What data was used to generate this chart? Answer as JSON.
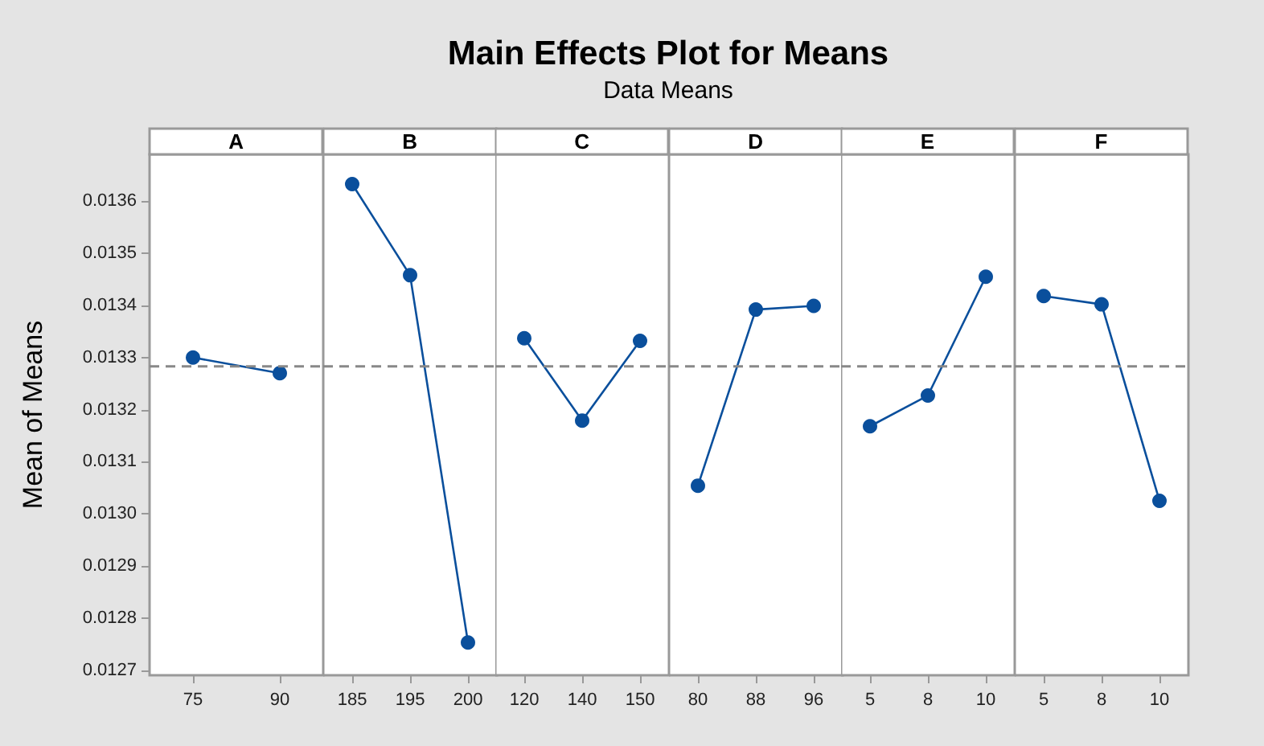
{
  "chart_data": [
    {
      "type": "line",
      "title": "A",
      "ylabel": "Mean of Means",
      "annotations": [
        "Main Effects Plot for Means",
        "Data Means"
      ],
      "categories": [
        "75",
        "90"
      ],
      "series": [
        {
          "color": "#0a4f9c",
          "values": [
            0.0133,
            0.01327
          ]
        }
      ],
      "ylim": [
        0.01269,
        0.01369
      ],
      "yticks": [
        0.0127,
        0.0128,
        0.0129,
        {
          "value": 0.013,
          "label": "0.0130"
        },
        0.0131,
        0.0132,
        0.0133,
        0.0134,
        0.0135,
        0.0136
      ],
      "ref_lines": [
        {
          "axis": "y",
          "value": 0.013283,
          "color": "#888888",
          "line_style": "dashed"
        }
      ],
      "marker": "circle"
    },
    {
      "type": "line",
      "title": "B",
      "categories": [
        "185",
        "195",
        "200"
      ],
      "series": [
        {
          "color": "#0a4f9c",
          "values": [
            0.013633,
            0.013458,
            0.012753
          ]
        }
      ],
      "ylim": [
        0.01269,
        0.01369
      ],
      "tick_labels": "x",
      "ref_lines": [
        {
          "axis": "y",
          "value": 0.013283,
          "color": "#888888",
          "line_style": "dashed"
        }
      ],
      "marker": "circle"
    },
    {
      "type": "line",
      "title": "C",
      "categories": [
        "120",
        "140",
        "150"
      ],
      "series": [
        {
          "color": "#0a4f9c",
          "values": [
            0.013337,
            0.013179,
            0.013332
          ]
        }
      ],
      "ylim": [
        0.01269,
        0.01369
      ],
      "tick_labels": "x",
      "ref_lines": [
        {
          "axis": "y",
          "value": 0.013283,
          "color": "#888888",
          "line_style": "dashed"
        }
      ],
      "marker": "circle"
    },
    {
      "type": "line",
      "title": "D",
      "categories": [
        "80",
        "88",
        "96"
      ],
      "series": [
        {
          "color": "#0a4f9c",
          "values": [
            0.013054,
            0.013392,
            0.013399
          ]
        }
      ],
      "ylim": [
        0.01269,
        0.01369
      ],
      "tick_labels": "x",
      "ref_lines": [
        {
          "axis": "y",
          "value": 0.013283,
          "color": "#888888",
          "line_style": "dashed"
        }
      ],
      "marker": "circle"
    },
    {
      "type": "line",
      "title": "E",
      "categories": [
        "5",
        "8",
        "10"
      ],
      "series": [
        {
          "color": "#0a4f9c",
          "values": [
            0.013168,
            0.013227,
            0.013455
          ]
        }
      ],
      "ylim": [
        0.01269,
        0.01369
      ],
      "tick_labels": "x",
      "ref_lines": [
        {
          "axis": "y",
          "value": 0.013283,
          "color": "#888888",
          "line_style": "dashed"
        }
      ],
      "marker": "circle"
    },
    {
      "type": "line",
      "title": "F",
      "categories": [
        "5",
        "8",
        "10"
      ],
      "series": [
        {
          "color": "#0a4f9c",
          "values": [
            0.013418,
            0.013402,
            0.013025
          ]
        }
      ],
      "ylim": [
        0.01269,
        0.01369
      ],
      "tick_labels": "x",
      "ref_lines": [
        {
          "axis": "y",
          "value": 0.013283,
          "color": "#888888",
          "line_style": "dashed"
        }
      ],
      "marker": "circle"
    }
  ]
}
